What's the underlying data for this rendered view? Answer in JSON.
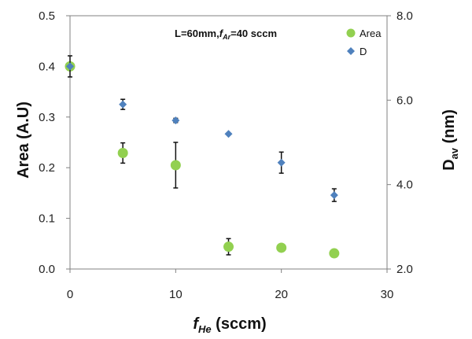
{
  "chart_data": {
    "type": "scatter",
    "annotation": {
      "prefix": "L=60mm,",
      "f": "f",
      "sub": "Ar",
      "suffix": "=40 sccm"
    },
    "xlabel": {
      "main": "f",
      "sub": "He",
      "rest": " (sccm)"
    },
    "ylabel_left": "Area (A.U)",
    "ylabel_right": {
      "main": "D",
      "sub": "av",
      "rest": " (nm)"
    },
    "x_ticks": [
      "0",
      "10",
      "20",
      "30"
    ],
    "y_left_ticks": [
      "0.0",
      "0.1",
      "0.2",
      "0.3",
      "0.4",
      "0.5"
    ],
    "y_right_ticks": [
      "2.0",
      "4.0",
      "6.0",
      "8.0"
    ],
    "xlim": [
      0,
      30
    ],
    "ylim_left": [
      0,
      0.5
    ],
    "ylim_right": [
      2.0,
      8.0
    ],
    "legend_position": "top-right",
    "colors": {
      "area": "#92D050",
      "d": "#4F81BD",
      "errorbar": "#111111"
    },
    "series": [
      {
        "name": "Area",
        "axis": "left",
        "marker": "circle",
        "x": [
          0,
          5,
          10,
          15,
          20,
          25
        ],
        "y": [
          0.4,
          0.229,
          0.205,
          0.044,
          0.042,
          0.031
        ],
        "err": [
          0.0,
          0.02,
          0.045,
          0.016,
          0.0,
          0.0
        ]
      },
      {
        "name": "D",
        "axis": "right",
        "marker": "diamond",
        "x": [
          0,
          5,
          10,
          15,
          20,
          25
        ],
        "y": [
          6.8,
          5.9,
          5.52,
          5.2,
          4.52,
          3.75
        ],
        "err": [
          0.25,
          0.12,
          0.05,
          0.0,
          0.25,
          0.15
        ]
      }
    ]
  }
}
